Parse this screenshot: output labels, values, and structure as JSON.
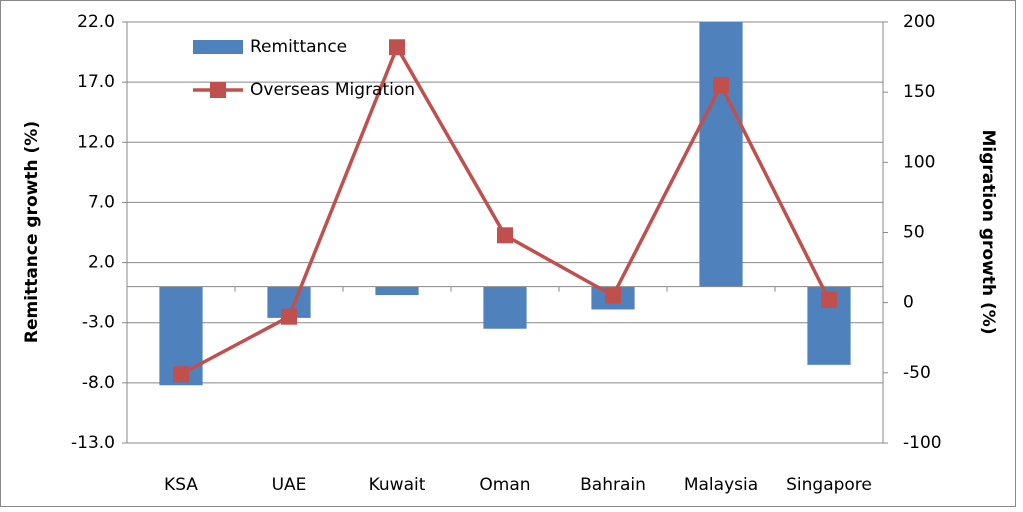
{
  "chart_data": {
    "type": "bar-line",
    "categories": [
      "KSA",
      "UAE",
      "Kuwait",
      "Oman",
      "Bahrain",
      "Malaysia",
      "Singapore"
    ],
    "series": [
      {
        "name": "Remittance",
        "color": "#4f81bd",
        "type": "bar",
        "values": [
          -8.2,
          -2.6,
          -0.7,
          -3.5,
          -1.9,
          22,
          -6.5
        ]
      },
      {
        "name": "Overseas Migration",
        "color": "#c0504d",
        "type": "line",
        "axis": "y2",
        "values": [
          -51,
          -10,
          182,
          48,
          5,
          155,
          2
        ]
      }
    ],
    "y_label": "Remittance growth (%)",
    "y2_label": "Migration growth (%)",
    "ylim": [
      -13,
      22
    ],
    "yticks": [
      {
        "value": -13,
        "label": "-13.0"
      },
      {
        "value": -8,
        "label": "-8.0"
      },
      {
        "value": -3,
        "label": "-3.0"
      },
      {
        "value": 2,
        "label": "2.0"
      },
      {
        "value": 7,
        "label": "7.0"
      },
      {
        "value": 12,
        "label": "12.0"
      },
      {
        "value": 17,
        "label": "17.0"
      },
      {
        "value": 22,
        "label": "22.0"
      }
    ],
    "y2lim": [
      -100,
      200
    ],
    "y2ticks": [
      -100,
      -50,
      0,
      50,
      100,
      150,
      200
    ],
    "grid": true
  }
}
